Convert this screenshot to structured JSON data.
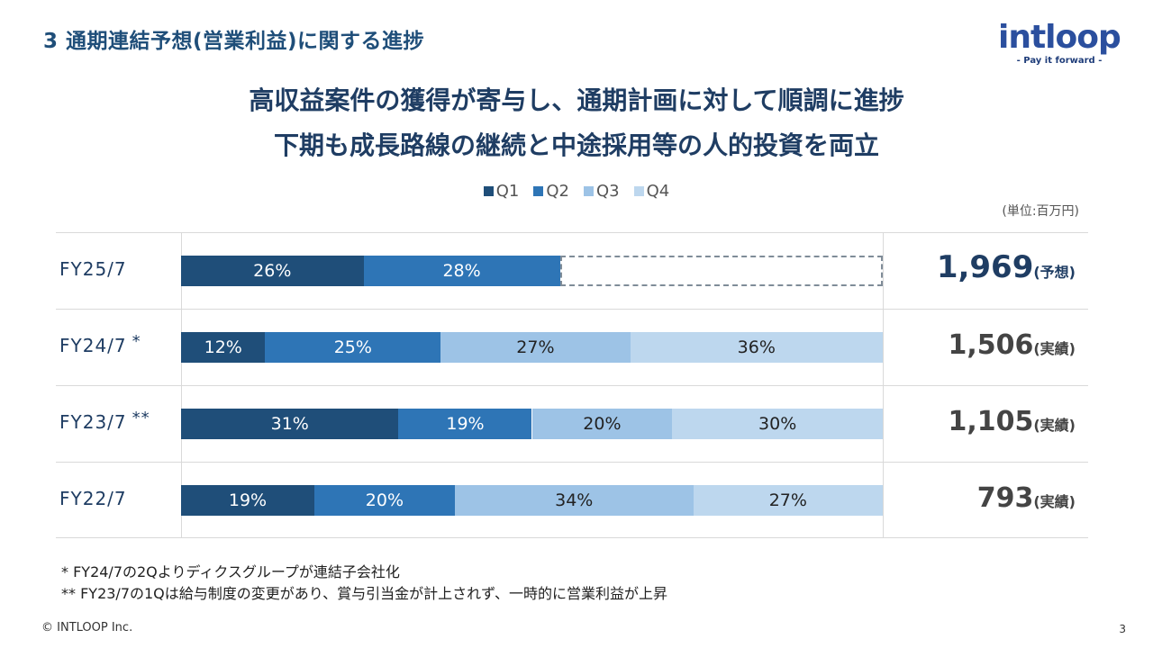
{
  "section_title": "3  通期連結予想(営業利益)に関する進捗",
  "logo": {
    "text": "intloop",
    "tagline": "- Pay it forward -"
  },
  "headline": {
    "line1": "高収益案件の獲得が寄与し、通期計画に対して順調に進捗",
    "line2": "下期も成長路線の継続と中途採用等の人的投資を両立"
  },
  "colors": {
    "Q1": "#1f4e79",
    "Q2": "#2e75b6",
    "Q3": "#9dc3e6",
    "Q4": "#bdd7ee",
    "title": "#1f3d63"
  },
  "chart_data": {
    "type": "bar",
    "orientation": "horizontal",
    "stacked": true,
    "legend_position": "top-center",
    "unit": "(単位:百万円)",
    "series_names": [
      "Q1",
      "Q2",
      "Q3",
      "Q4"
    ],
    "rows": [
      {
        "label": "FY25/7",
        "mark": "",
        "shares": [
          26,
          28,
          null,
          null
        ],
        "labels": [
          "26%",
          "28%",
          "",
          ""
        ],
        "remaining_dashed": true,
        "total": "1,969",
        "total_note": "(予想)",
        "highlight": true
      },
      {
        "label": "FY24/7",
        "mark": "*",
        "shares": [
          12,
          25,
          27,
          36
        ],
        "labels": [
          "12%",
          "25%",
          "27%",
          "36%"
        ],
        "remaining_dashed": false,
        "total": "1,506",
        "total_note": "(実績)",
        "highlight": false
      },
      {
        "label": "FY23/7",
        "mark": "**",
        "shares": [
          31,
          19,
          20,
          30
        ],
        "labels": [
          "31%",
          "19%",
          "20%",
          "30%"
        ],
        "remaining_dashed": false,
        "total": "1,105",
        "total_note": "(実績)",
        "highlight": false
      },
      {
        "label": "FY22/7",
        "mark": "",
        "shares": [
          19,
          20,
          34,
          27
        ],
        "labels": [
          "19%",
          "20%",
          "34%",
          "27%"
        ],
        "remaining_dashed": false,
        "total": "793",
        "total_note": "(実績)",
        "highlight": false
      }
    ]
  },
  "footnotes": [
    "*    FY24/7の2Qよりディクスグループが連結子会社化",
    "** FY23/7の1Qは給与制度の変更があり、賞与引当金が計上されず、一時的に営業利益が上昇"
  ],
  "copyright": "© INTLOOP  Inc.",
  "page_number": "3"
}
